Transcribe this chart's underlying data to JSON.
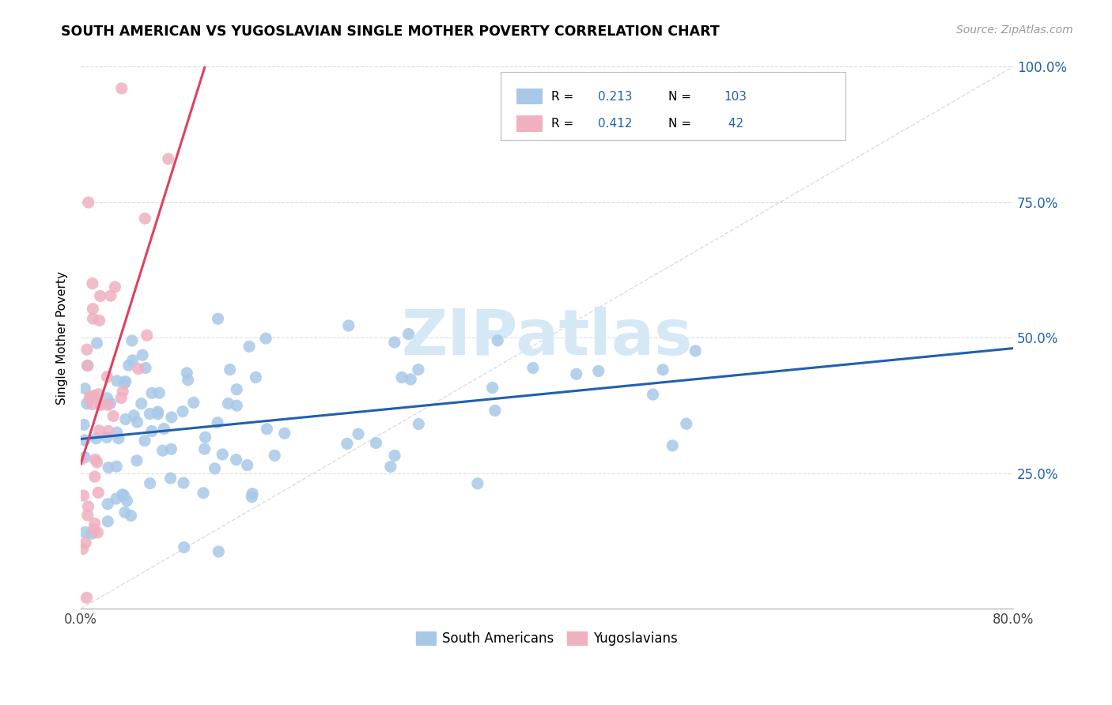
{
  "title": "SOUTH AMERICAN VS YUGOSLAVIAN SINGLE MOTHER POVERTY CORRELATION CHART",
  "source": "Source: ZipAtlas.com",
  "ylabel": "Single Mother Poverty",
  "legend_label1": "South Americans",
  "legend_label2": "Yugoslavians",
  "R1": 0.213,
  "N1": 103,
  "R2": 0.412,
  "N2": 42,
  "color1": "#a8c8e8",
  "color2": "#f0b0c0",
  "line_color1": "#2060b0",
  "line_color2": "#e04060",
  "diagonal_color": "#dddddd",
  "watermark_color": "#d5e8f5",
  "xmin": 0.0,
  "xmax": 0.8,
  "ymin": 0.0,
  "ymax": 1.0,
  "yticks": [
    0.25,
    0.5,
    0.75,
    1.0
  ],
  "ytick_labels": [
    "25.0%",
    "50.0%",
    "75.0%",
    "100.0%"
  ],
  "xtick_labels": [
    "0.0%",
    "",
    "",
    "",
    "80.0%"
  ],
  "seed1": 7,
  "seed2": 13
}
